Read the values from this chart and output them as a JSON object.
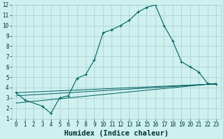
{
  "xlabel": "Humidex (Indice chaleur)",
  "xlim": [
    -0.5,
    23.5
  ],
  "ylim": [
    1,
    12
  ],
  "yticks": [
    1,
    2,
    3,
    4,
    5,
    6,
    7,
    8,
    9,
    10,
    11,
    12
  ],
  "xticks": [
    0,
    1,
    2,
    3,
    4,
    5,
    6,
    7,
    8,
    9,
    10,
    11,
    12,
    13,
    14,
    15,
    16,
    17,
    18,
    19,
    20,
    21,
    22,
    23
  ],
  "bg_color": "#cef0ee",
  "grid_color": "#a8cecc",
  "line_color": "#006060",
  "main_line_x": [
    0,
    1,
    3,
    4,
    5,
    6,
    7,
    8,
    9,
    10,
    11,
    12,
    13,
    14,
    15,
    16,
    17,
    18,
    19,
    20,
    21,
    22,
    23
  ],
  "main_line_y": [
    3.5,
    2.8,
    2.2,
    1.5,
    3.0,
    3.2,
    4.9,
    5.25,
    6.7,
    9.3,
    9.6,
    10.0,
    10.5,
    11.3,
    11.75,
    12.0,
    10.0,
    8.5,
    6.5,
    6.0,
    5.5,
    4.4,
    4.3
  ],
  "trend1_x": [
    0,
    23
  ],
  "trend1_y": [
    3.5,
    4.35
  ],
  "trend2_x": [
    0,
    23
  ],
  "trend2_y": [
    3.2,
    4.35
  ],
  "trend3_x": [
    0,
    23
  ],
  "trend3_y": [
    2.5,
    4.4
  ],
  "font_color": "#003333",
  "tick_fontsize": 5.5,
  "label_fontsize": 7.5
}
